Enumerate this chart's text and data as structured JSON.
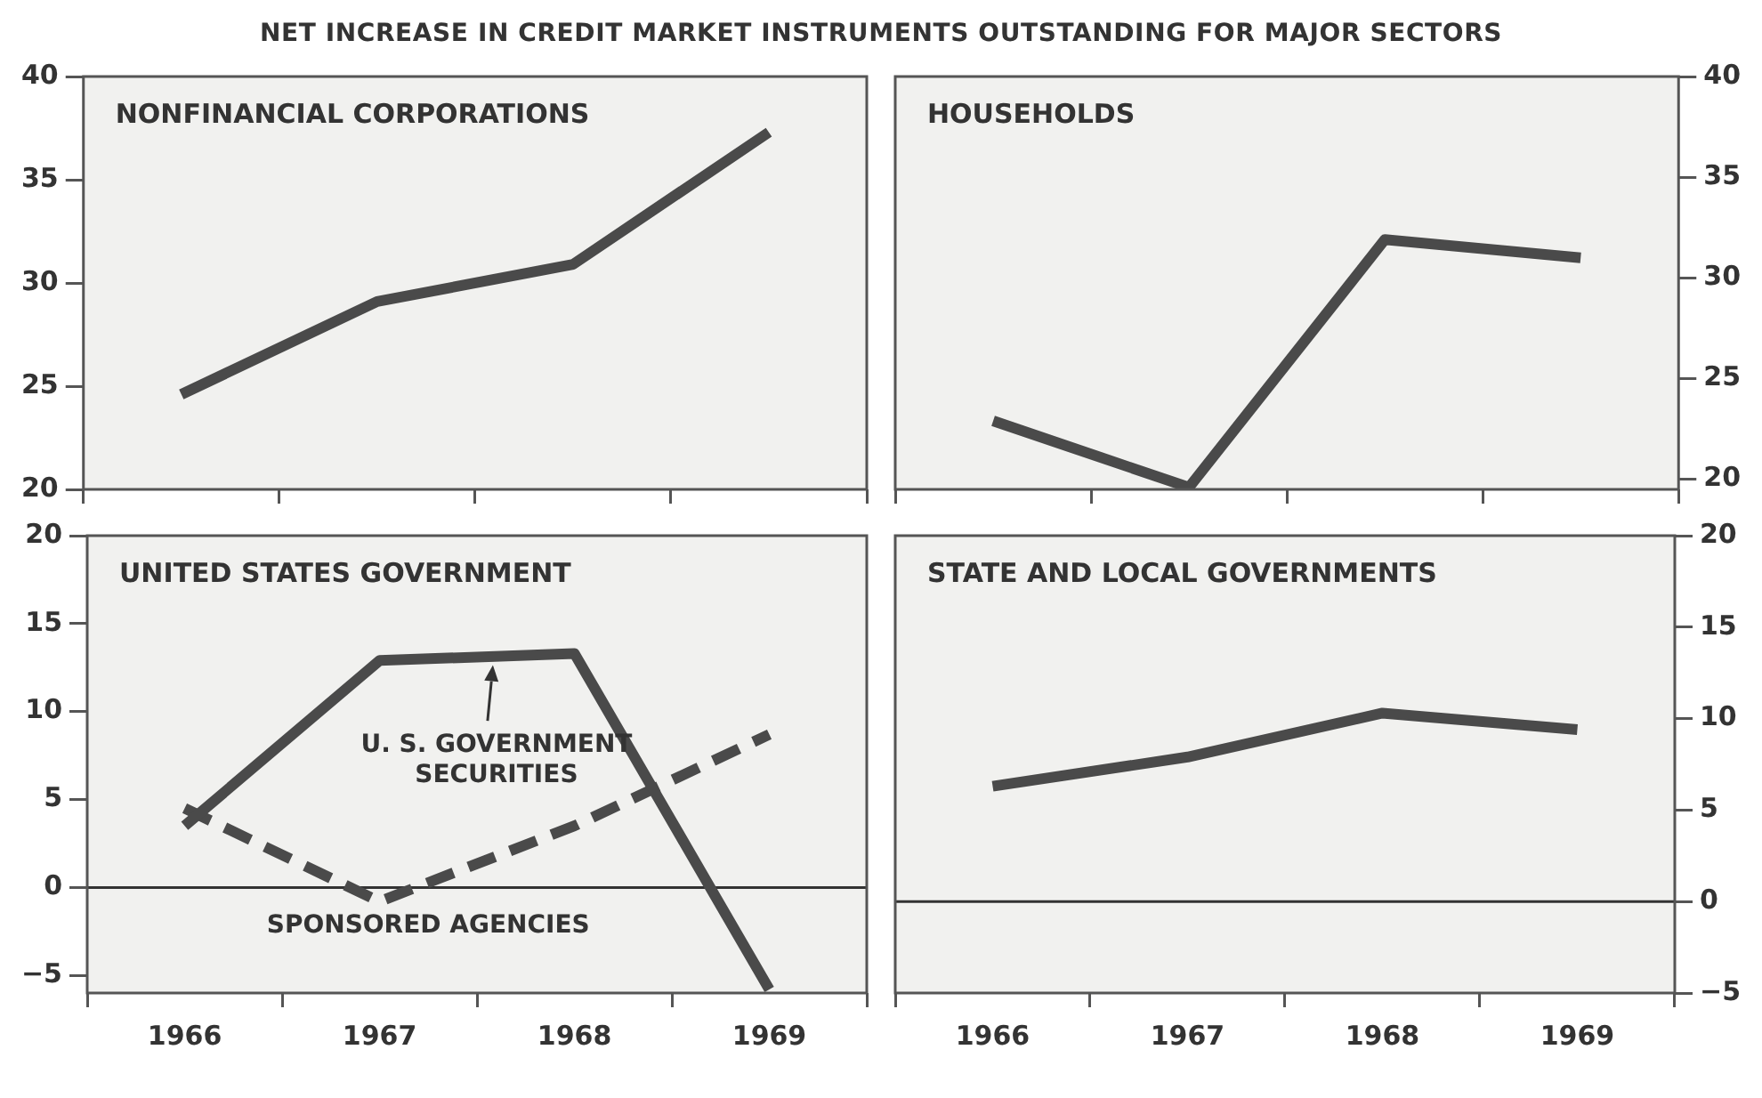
{
  "chart_data": [
    {
      "type": "line",
      "title": "NET INCREASE IN CREDIT MARKET INSTRUMENTS OUTSTANDING FOR MAJOR SECTORS",
      "subtitle": "NONFINANCIAL CORPORATIONS",
      "categories": [
        "1966",
        "1967",
        "1968",
        "1969"
      ],
      "series": [
        {
          "color": "#4a4a4a",
          "values": [
            24.6,
            29.1,
            30.9,
            37.3
          ]
        }
      ],
      "ylim": [
        20,
        40
      ],
      "yticks": [
        20,
        25,
        30,
        35,
        40
      ],
      "tick_labels": "y",
      "marker": "none",
      "line_style": "solid"
    },
    {
      "type": "line",
      "subtitle": "HOUSEHOLDS",
      "categories": [
        "1966",
        "1967",
        "1968",
        "1969"
      ],
      "series": [
        {
          "color": "#4a4a4a",
          "values": [
            22.9,
            19.6,
            31.9,
            31.0
          ]
        }
      ],
      "ylim": [
        19.5,
        40
      ],
      "yticks": [
        20,
        25,
        30,
        35,
        40
      ],
      "tick_labels": "y",
      "marker": "none",
      "line_style": "solid"
    },
    {
      "type": "line",
      "subtitle": "UNITED STATES GOVERNMENT",
      "categories": [
        "1966",
        "1967",
        "1968",
        "1969"
      ],
      "series": [
        {
          "name": "U. S. GOVERNMENT SECURITIES",
          "color": "#4a4a4a",
          "values": [
            3.5,
            12.9,
            13.3,
            -5.8
          ]
        },
        {
          "name": "SPONSORED AGENCIES",
          "color": "#4a4a4a",
          "values": [
            4.5,
            -0.8,
            3.5,
            8.7
          ],
          "line_style": "dashed"
        }
      ],
      "ylim": [
        -6,
        20
      ],
      "yticks": [
        -5,
        0,
        5,
        10,
        15,
        20
      ],
      "ref_lines": [
        {
          "axis": "y",
          "value": 0,
          "color": "#333333"
        }
      ],
      "marker": "none",
      "line_style": "solid"
    },
    {
      "type": "line",
      "subtitle": "STATE AND LOCAL GOVERNMENTS",
      "categories": [
        "1966",
        "1967",
        "1968",
        "1969"
      ],
      "series": [
        {
          "color": "#4a4a4a",
          "values": [
            6.3,
            7.9,
            10.3,
            9.4
          ]
        }
      ],
      "ylim": [
        -5,
        20
      ],
      "yticks": [
        -5,
        0,
        5,
        10,
        15,
        20
      ],
      "ref_lines": [
        {
          "axis": "y",
          "value": 0,
          "color": "#333333"
        }
      ],
      "marker": "none",
      "line_style": "solid"
    }
  ]
}
